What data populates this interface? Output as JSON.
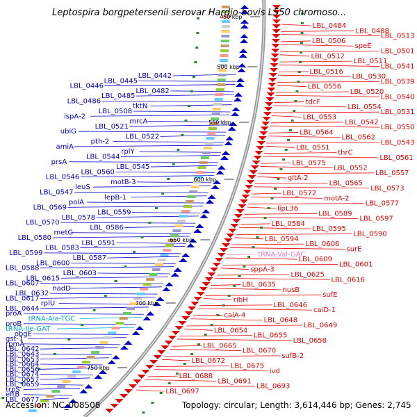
{
  "title": "Leptospira borgpetersenii serovar Hardjo-bovis L550 chromoso...",
  "footer": {
    "accession": "Accession: NC_008508",
    "summary": "Topology: circular; Length: 3,614,446 bp; Genes: 2,745"
  },
  "colors": {
    "forward": "#e80000",
    "reverse": "#0000cc",
    "rna_forward": "#ee77cc",
    "rna_reverse": "#00aadd",
    "backbone": "#999999",
    "tick": "#2a8a2a"
  },
  "ticks": [
    "450 kbp",
    "500 kbp",
    "550 kbp",
    "600 kbp",
    "650 kbp",
    "700 kbp",
    "750 kbp"
  ],
  "labels": [
    {
      "t": "LBL_0484",
      "s": "f"
    },
    {
      "t": "LBL_0488",
      "s": "f"
    },
    {
      "t": "LBL_0513",
      "s": "f"
    },
    {
      "t": "LBL_0506",
      "s": "f"
    },
    {
      "t": "speE",
      "s": "f"
    },
    {
      "t": "LBL_0501",
      "s": "f"
    },
    {
      "t": "LBL_0512",
      "s": "f"
    },
    {
      "t": "LBL_0511",
      "s": "f"
    },
    {
      "t": "LBL_0541",
      "s": "f"
    },
    {
      "t": "LBL_0516",
      "s": "f"
    },
    {
      "t": "LBL_0530",
      "s": "f"
    },
    {
      "t": "LBL_0539",
      "s": "f"
    },
    {
      "t": "LBL_0556",
      "s": "f"
    },
    {
      "t": "LBL_0520",
      "s": "f"
    },
    {
      "t": "LBL_0540",
      "s": "f"
    },
    {
      "t": "tdcF",
      "s": "f"
    },
    {
      "t": "LBL_0554",
      "s": "f"
    },
    {
      "t": "LBL_0531",
      "s": "f"
    },
    {
      "t": "LBL_0553",
      "s": "f"
    },
    {
      "t": "LBL_0542",
      "s": "f"
    },
    {
      "t": "LBL_0550",
      "s": "f"
    },
    {
      "t": "LBL_0564",
      "s": "f"
    },
    {
      "t": "LBL_0562",
      "s": "f"
    },
    {
      "t": "LBL_0543",
      "s": "f"
    },
    {
      "t": "LBL_0551",
      "s": "f"
    },
    {
      "t": "thrC",
      "s": "f"
    },
    {
      "t": "LBL_0561",
      "s": "f"
    },
    {
      "t": "LBL_0575",
      "s": "f"
    },
    {
      "t": "LBL_0552",
      "s": "f"
    },
    {
      "t": "LBL_0557",
      "s": "f"
    },
    {
      "t": "gltA-2",
      "s": "f"
    },
    {
      "t": "LBL_0565",
      "s": "f"
    },
    {
      "t": "LBL_0573",
      "s": "f"
    },
    {
      "t": "LBL_0572",
      "s": "f"
    },
    {
      "t": "motA-2",
      "s": "f"
    },
    {
      "t": "LBL_0577",
      "s": "f"
    },
    {
      "t": "lipL36",
      "s": "f"
    },
    {
      "t": "LBL_0589",
      "s": "f"
    },
    {
      "t": "LBL_0597",
      "s": "f"
    },
    {
      "t": "LBL_0584",
      "s": "f"
    },
    {
      "t": "LBL_0595",
      "s": "f"
    },
    {
      "t": "LBL_0590",
      "s": "f"
    },
    {
      "t": "LBL_0594",
      "s": "f"
    },
    {
      "t": "LBL_0606",
      "s": "f"
    },
    {
      "t": "surE",
      "s": "f"
    },
    {
      "t": "tRNA-Val-GAC",
      "s": "rf"
    },
    {
      "t": "LBL_0609",
      "s": "f"
    },
    {
      "t": "LBL_0601",
      "s": "f"
    },
    {
      "t": "sppA-3",
      "s": "f"
    },
    {
      "t": "LBL_0625",
      "s": "f"
    },
    {
      "t": "LBL_0616",
      "s": "f"
    },
    {
      "t": "LBL_0635",
      "s": "f"
    },
    {
      "t": "nusB",
      "s": "f"
    },
    {
      "t": "sufE",
      "s": "f"
    },
    {
      "t": "ribH",
      "s": "f"
    },
    {
      "t": "LBL_0646",
      "s": "f"
    },
    {
      "t": "caiD-1",
      "s": "f"
    },
    {
      "t": "caiA-4",
      "s": "f"
    },
    {
      "t": "LBL_0648",
      "s": "f"
    },
    {
      "t": "LBL_0649",
      "s": "f"
    },
    {
      "t": "LBL_0654",
      "s": "f"
    },
    {
      "t": "LBL_0655",
      "s": "f"
    },
    {
      "t": "LBL_0658",
      "s": "f"
    },
    {
      "t": "LBL_0665",
      "s": "f"
    },
    {
      "t": "LBL_0670",
      "s": "f"
    },
    {
      "t": "sufB-2",
      "s": "f"
    },
    {
      "t": "LBL_0672",
      "s": "f"
    },
    {
      "t": "LBL_0675",
      "s": "f"
    },
    {
      "t": "ivd",
      "s": "f"
    },
    {
      "t": "LBL_0688",
      "s": "f"
    },
    {
      "t": "LBL_0691",
      "s": "f"
    },
    {
      "t": "LBL_0693",
      "s": "f"
    },
    {
      "t": "LBL_0697",
      "s": "f"
    },
    {
      "t": "LBL_0442",
      "s": "r"
    },
    {
      "t": "LBL_0445",
      "s": "r"
    },
    {
      "t": "LBL_0446",
      "s": "r"
    },
    {
      "t": "LBL_0482",
      "s": "r"
    },
    {
      "t": "LBL_0485",
      "s": "r"
    },
    {
      "t": "LBL_0486",
      "s": "r"
    },
    {
      "t": "tktN",
      "s": "r"
    },
    {
      "t": "LBL_0508",
      "s": "r"
    },
    {
      "t": "ispA-2",
      "s": "r"
    },
    {
      "t": "mrcA",
      "s": "r"
    },
    {
      "t": "LBL_0521",
      "s": "r"
    },
    {
      "t": "ubiG",
      "s": "r"
    },
    {
      "t": "LBL_0522",
      "s": "r"
    },
    {
      "t": "pth-2",
      "s": "r"
    },
    {
      "t": "amiA",
      "s": "r"
    },
    {
      "t": "rplY",
      "s": "r"
    },
    {
      "t": "LBL_0544",
      "s": "r"
    },
    {
      "t": "prsA",
      "s": "r"
    },
    {
      "t": "LBL_0545",
      "s": "r"
    },
    {
      "t": "LBL_0560",
      "s": "r"
    },
    {
      "t": "LBL_0546",
      "s": "r"
    },
    {
      "t": "motB-3",
      "s": "r"
    },
    {
      "t": "leuS",
      "s": "r"
    },
    {
      "t": "LBL_0547",
      "s": "r"
    },
    {
      "t": "lepB-1",
      "s": "r"
    },
    {
      "t": "polA",
      "s": "r"
    },
    {
      "t": "LBL_0569",
      "s": "r"
    },
    {
      "t": "LBL_0559",
      "s": "r"
    },
    {
      "t": "LBL_0578",
      "s": "r"
    },
    {
      "t": "LBL_0570",
      "s": "r"
    },
    {
      "t": "LBL_0586",
      "s": "r"
    },
    {
      "t": "metG",
      "s": "r"
    },
    {
      "t": "LBL_0580",
      "s": "r"
    },
    {
      "t": "LBL_0591",
      "s": "r"
    },
    {
      "t": "LBL_0583",
      "s": "r"
    },
    {
      "t": "LBL_0599",
      "s": "r"
    },
    {
      "t": "LBL_0587",
      "s": "r"
    },
    {
      "t": "LBL_0600",
      "s": "r"
    },
    {
      "t": "LBL_0588",
      "s": "r"
    },
    {
      "t": "LBL_0603",
      "s": "r"
    },
    {
      "t": "LBL_0615",
      "s": "r"
    },
    {
      "t": "LBL_0607",
      "s": "r"
    },
    {
      "t": "nadD",
      "s": "r"
    },
    {
      "t": "LBL_0632",
      "s": "r"
    },
    {
      "t": "LBL_0617",
      "s": "r"
    },
    {
      "t": "rplU",
      "s": "r"
    },
    {
      "t": "LBL_0644",
      "s": "r"
    },
    {
      "t": "proA",
      "s": "r"
    },
    {
      "t": "tRNA-Ala-TGC",
      "s": "rr"
    },
    {
      "t": "proB",
      "s": "r"
    },
    {
      "t": "tRNA-Ile-GAT",
      "s": "rr"
    },
    {
      "t": "obgE",
      "s": "r"
    },
    {
      "t": "gst-1",
      "s": "r"
    },
    {
      "t": "rpmA",
      "s": "r"
    },
    {
      "t": "LBL_0642",
      "s": "r"
    },
    {
      "t": "LBL_0643",
      "s": "r"
    },
    {
      "t": "LBL_0653",
      "s": "r"
    },
    {
      "t": "LBL_0664",
      "s": "r"
    },
    {
      "t": "LBL_0656",
      "s": "r"
    },
    {
      "t": "LBL_0674",
      "s": "r"
    },
    {
      "t": "LBL_0657",
      "s": "r"
    },
    {
      "t": "LBL_0659",
      "s": "r"
    },
    {
      "t": "trpS",
      "s": "r"
    },
    {
      "t": "eftB",
      "s": "r"
    },
    {
      "t": "LBL_0677",
      "s": "r"
    }
  ]
}
